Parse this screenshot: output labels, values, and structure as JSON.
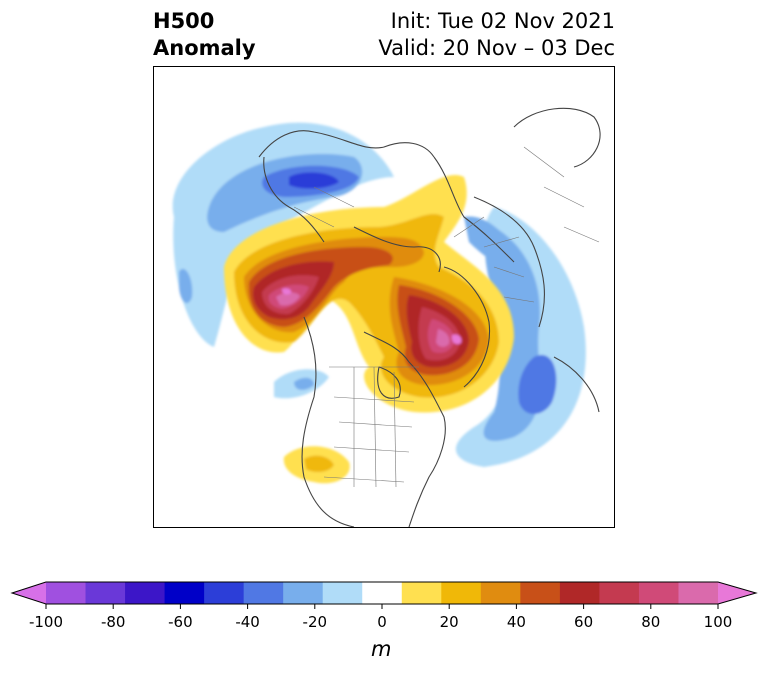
{
  "header": {
    "title_line1": "H500",
    "title_line2": "Anomaly",
    "init": "Init: Tue 02 Nov 2021",
    "valid": "Valid: 20 Nov – 03 Dec"
  },
  "colorbar": {
    "unit": "m",
    "ticks": [
      "-100",
      "-80",
      "-60",
      "-40",
      "-20",
      "0",
      "20",
      "40",
      "60",
      "80",
      "100"
    ],
    "colors": [
      "#d770e8",
      "#a050e0",
      "#6a38d8",
      "#3c16c8",
      "#0000c8",
      "#2c3ed8",
      "#5078e4",
      "#78aeec",
      "#b0dcf8",
      "#ffffff",
      "#ffe050",
      "#f0b808",
      "#e08c10",
      "#c85018",
      "#b02828",
      "#c43a50",
      "#d04a78",
      "#da6aac",
      "#e878d8"
    ]
  }
}
